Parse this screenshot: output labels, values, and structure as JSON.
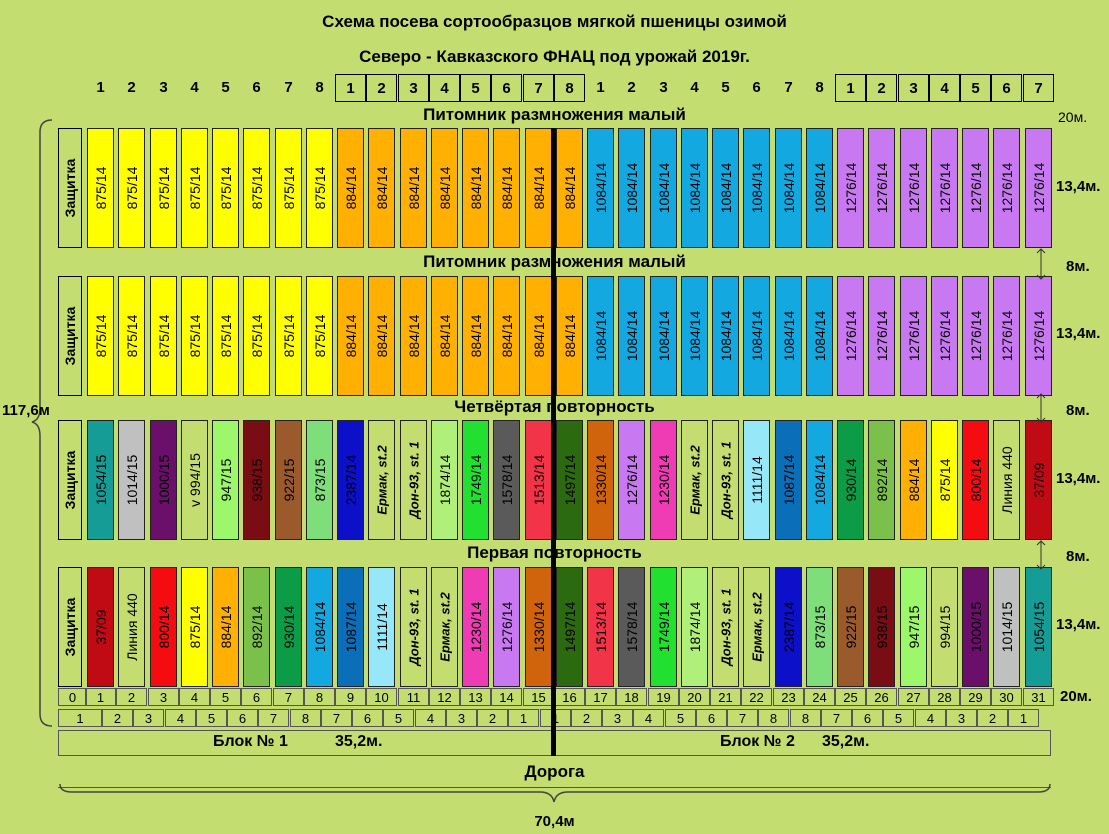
{
  "title_line1": "Схема посева сортообразцов мягкой пшеницы озимой",
  "title_line2": "Северо - Кавказского ФНАЦ под урожай 2019г.",
  "column_numbers": [
    "1",
    "2",
    "3",
    "4",
    "5",
    "6",
    "7",
    "8",
    "1",
    "2",
    "3",
    "4",
    "5",
    "6",
    "7",
    "8",
    "1",
    "2",
    "3",
    "4",
    "5",
    "6",
    "7",
    "8",
    "1",
    "2",
    "3",
    "4",
    "5",
    "6",
    "7"
  ],
  "protection_label": "Защитка",
  "rows": [
    {
      "label": "Питомник размножения малый",
      "plots": [
        {
          "text": "875/14",
          "color": "#ffff00"
        },
        {
          "text": "875/14",
          "color": "#ffff00"
        },
        {
          "text": "875/14",
          "color": "#ffff00"
        },
        {
          "text": "875/14",
          "color": "#ffff00"
        },
        {
          "text": "875/14",
          "color": "#ffff00"
        },
        {
          "text": "875/14",
          "color": "#ffff00"
        },
        {
          "text": "875/14",
          "color": "#ffff00"
        },
        {
          "text": "875/14",
          "color": "#ffff00"
        },
        {
          "text": "884/14",
          "color": "#ffb000"
        },
        {
          "text": "884/14",
          "color": "#ffb000"
        },
        {
          "text": "884/14",
          "color": "#ffb000"
        },
        {
          "text": "884/14",
          "color": "#ffb000"
        },
        {
          "text": "884/14",
          "color": "#ffb000"
        },
        {
          "text": "884/14",
          "color": "#ffb000"
        },
        {
          "text": "884/14",
          "color": "#ffb000"
        },
        {
          "text": "884/14",
          "color": "#ffb000"
        },
        {
          "text": "1084/14",
          "color": "#14a8e0"
        },
        {
          "text": "1084/14",
          "color": "#14a8e0"
        },
        {
          "text": "1084/14",
          "color": "#14a8e0"
        },
        {
          "text": "1084/14",
          "color": "#14a8e0"
        },
        {
          "text": "1084/14",
          "color": "#14a8e0"
        },
        {
          "text": "1084/14",
          "color": "#14a8e0"
        },
        {
          "text": "1084/14",
          "color": "#14a8e0"
        },
        {
          "text": "1084/14",
          "color": "#14a8e0"
        },
        {
          "text": "1276/14",
          "color": "#c878f0"
        },
        {
          "text": "1276/14",
          "color": "#c878f0"
        },
        {
          "text": "1276/14",
          "color": "#c878f0"
        },
        {
          "text": "1276/14",
          "color": "#c878f0"
        },
        {
          "text": "1276/14",
          "color": "#c878f0"
        },
        {
          "text": "1276/14",
          "color": "#c878f0"
        },
        {
          "text": "1276/14",
          "color": "#c878f0"
        }
      ]
    },
    {
      "label": "Питомник размножения малый",
      "plots": [
        {
          "text": "875/14",
          "color": "#ffff00"
        },
        {
          "text": "875/14",
          "color": "#ffff00"
        },
        {
          "text": "875/14",
          "color": "#ffff00"
        },
        {
          "text": "875/14",
          "color": "#ffff00"
        },
        {
          "text": "875/14",
          "color": "#ffff00"
        },
        {
          "text": "875/14",
          "color": "#ffff00"
        },
        {
          "text": "875/14",
          "color": "#ffff00"
        },
        {
          "text": "875/14",
          "color": "#ffff00"
        },
        {
          "text": "884/14",
          "color": "#ffb000"
        },
        {
          "text": "884/14",
          "color": "#ffb000"
        },
        {
          "text": "884/14",
          "color": "#ffb000"
        },
        {
          "text": "884/14",
          "color": "#ffb000"
        },
        {
          "text": "884/14",
          "color": "#ffb000"
        },
        {
          "text": "884/14",
          "color": "#ffb000"
        },
        {
          "text": "884/14",
          "color": "#ffb000"
        },
        {
          "text": "884/14",
          "color": "#ffb000"
        },
        {
          "text": "1084/14",
          "color": "#14a8e0"
        },
        {
          "text": "1084/14",
          "color": "#14a8e0"
        },
        {
          "text": "1084/14",
          "color": "#14a8e0"
        },
        {
          "text": "1084/14",
          "color": "#14a8e0"
        },
        {
          "text": "1084/14",
          "color": "#14a8e0"
        },
        {
          "text": "1084/14",
          "color": "#14a8e0"
        },
        {
          "text": "1084/14",
          "color": "#14a8e0"
        },
        {
          "text": "1084/14",
          "color": "#14a8e0"
        },
        {
          "text": "1276/14",
          "color": "#c878f0"
        },
        {
          "text": "1276/14",
          "color": "#c878f0"
        },
        {
          "text": "1276/14",
          "color": "#c878f0"
        },
        {
          "text": "1276/14",
          "color": "#c878f0"
        },
        {
          "text": "1276/14",
          "color": "#c878f0"
        },
        {
          "text": "1276/14",
          "color": "#c878f0"
        },
        {
          "text": "1276/14",
          "color": "#c878f0"
        }
      ]
    },
    {
      "label": "Четвёртая повторность",
      "plots": [
        {
          "text": "1054/15",
          "color": "#169c96"
        },
        {
          "text": "1014/15",
          "color": "#c0c0c0"
        },
        {
          "text": "1000/15",
          "color": "#6a106a"
        },
        {
          "text": "v 994/15",
          "color": "#c3dd70"
        },
        {
          "text": "947/15",
          "color": "#9cf86a"
        },
        {
          "text": "938/15",
          "color": "#7a0c14"
        },
        {
          "text": "922/15",
          "color": "#9a5a2c"
        },
        {
          "text": "873/15",
          "color": "#7ede7a"
        },
        {
          "text": "2387/14",
          "color": "#0c10c8"
        },
        {
          "text": "Ермак, st.2",
          "color": "#c3dd70",
          "italic": true
        },
        {
          "text": "Дон-93, st. 1",
          "color": "#c3dd70",
          "italic": true
        },
        {
          "text": "1874/14",
          "color": "#b0f07a"
        },
        {
          "text": "1749/14",
          "color": "#22e030"
        },
        {
          "text": "1578/14",
          "color": "#5a5a5a"
        },
        {
          "text": "1513/14",
          "color": "#f23448"
        },
        {
          "text": "1497/14",
          "color": "#2c6a10"
        },
        {
          "text": "1330/14",
          "color": "#d0640c"
        },
        {
          "text": "1276/14",
          "color": "#c878f0"
        },
        {
          "text": "1230/14",
          "color": "#f03cb4"
        },
        {
          "text": "Ермак, st.2",
          "color": "#c3dd70",
          "italic": true
        },
        {
          "text": "Дон-93, st. 1",
          "color": "#c3dd70",
          "italic": true
        },
        {
          "text": "1111/14",
          "color": "#96e8f8"
        },
        {
          "text": "1087/14",
          "color": "#0a6eb8"
        },
        {
          "text": "1084/14",
          "color": "#14a8e0"
        },
        {
          "text": "930/14",
          "color": "#0c9c48"
        },
        {
          "text": "892/14",
          "color": "#7cc04c"
        },
        {
          "text": "884/14",
          "color": "#ffb000"
        },
        {
          "text": "875/14",
          "color": "#ffff00"
        },
        {
          "text": "800/14",
          "color": "#f40c10"
        },
        {
          "text": "Линия 440",
          "color": "#c3dd70"
        },
        {
          "text": "37/09",
          "color": "#c00a14"
        }
      ]
    },
    {
      "label": "Первая повторность",
      "plots": [
        {
          "text": "37/09",
          "color": "#c00a14"
        },
        {
          "text": "Линия 440",
          "color": "#c3dd70"
        },
        {
          "text": "800/14",
          "color": "#f40c10"
        },
        {
          "text": "875/14",
          "color": "#ffff00"
        },
        {
          "text": "884/14",
          "color": "#ffb000"
        },
        {
          "text": "892/14",
          "color": "#7cc04c"
        },
        {
          "text": "930/14",
          "color": "#0c9c48"
        },
        {
          "text": "1084/14",
          "color": "#14a8e0"
        },
        {
          "text": "1087/14",
          "color": "#0a6eb8"
        },
        {
          "text": "1111/14",
          "color": "#96e8f8"
        },
        {
          "text": "Дон-93, st. 1",
          "color": "#c3dd70",
          "italic": true
        },
        {
          "text": "Ермак, st.2",
          "color": "#c3dd70",
          "italic": true
        },
        {
          "text": "1230/14",
          "color": "#f03cb4"
        },
        {
          "text": "1276/14",
          "color": "#c878f0"
        },
        {
          "text": "1330/14",
          "color": "#d0640c"
        },
        {
          "text": "1497/14",
          "color": "#2c6a10"
        },
        {
          "text": "1513/14",
          "color": "#f23448"
        },
        {
          "text": "1578/14",
          "color": "#5a5a5a"
        },
        {
          "text": "1749/14",
          "color": "#22e030"
        },
        {
          "text": "1874/14",
          "color": "#b0f07a"
        },
        {
          "text": "Дон-93, st. 1",
          "color": "#c3dd70",
          "italic": true
        },
        {
          "text": "Ермак, st.2",
          "color": "#c3dd70",
          "italic": true
        },
        {
          "text": "2387/14",
          "color": "#0c10c8"
        },
        {
          "text": "873/15",
          "color": "#7ede7a"
        },
        {
          "text": "922/15",
          "color": "#9a5a2c"
        },
        {
          "text": "938/15",
          "color": "#7a0c14"
        },
        {
          "text": "947/15",
          "color": "#9cf86a"
        },
        {
          "text": "994/15",
          "color": "#c3dd70"
        },
        {
          "text": "1000/15",
          "color": "#6a106a"
        },
        {
          "text": "1014/15",
          "color": "#c0c0c0"
        },
        {
          "text": "1054/15",
          "color": "#169c96"
        }
      ]
    }
  ],
  "bottom_numbers_a": [
    "0",
    "1",
    "2",
    "3",
    "4",
    "5",
    "6",
    "7",
    "8",
    "9",
    "10",
    "11",
    "12",
    "13",
    "14",
    "15",
    "16",
    "17",
    "18",
    "19",
    "20",
    "21",
    "22",
    "23",
    "24",
    "25",
    "26",
    "27",
    "28",
    "29",
    "30",
    "31"
  ],
  "bottom_numbers_b": [
    "1",
    "2",
    "3",
    "4",
    "5",
    "6",
    "7",
    "8",
    "7",
    "6",
    "5",
    "4",
    "3",
    "2",
    "1",
    "1",
    "2",
    "3",
    "4",
    "5",
    "6",
    "7",
    "8",
    "8",
    "7",
    "6",
    "5",
    "4",
    "3",
    "2",
    "1"
  ],
  "block1_label": "Блок № 1",
  "block1_width": "35,2м.",
  "block2_label": "Блок № 2",
  "block2_width": "35,2м.",
  "road_label": "Дорога",
  "total_width": "70,4м",
  "total_length": "117,6м",
  "dims": {
    "top_margin": "20м.",
    "plot_len_1": "13,4м.",
    "gap_1": "8м.",
    "plot_len_2": "13,4м.",
    "gap_2": "8м.",
    "plot_len_3": "13,4м.",
    "gap_3": "8м.",
    "plot_len_4": "13,4м.",
    "bottom_margin": "20м."
  }
}
